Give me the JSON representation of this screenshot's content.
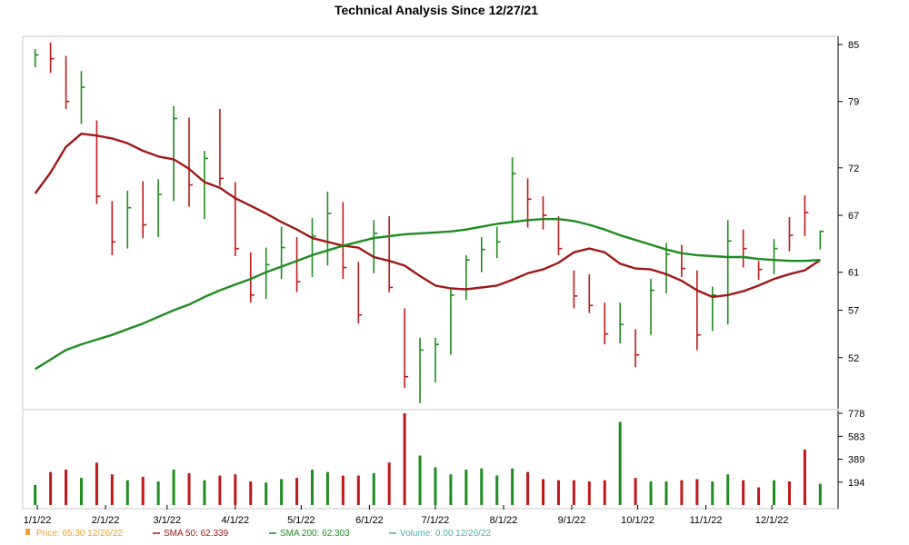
{
  "chart_data": {
    "type": "line",
    "title": "Technical Analysis Since 12/27/21",
    "price_axis": {
      "ticks": [
        52,
        57,
        61,
        67,
        72,
        79,
        85
      ],
      "ylim": [
        47,
        85
      ]
    },
    "volume_axis": {
      "ticks": [
        194,
        389,
        583,
        778
      ],
      "ylim": [
        0,
        778
      ]
    },
    "x_labels": [
      "1/1/22",
      "2/1/22",
      "3/1/22",
      "4/1/22",
      "5/1/22",
      "6/1/22",
      "7/1/22",
      "8/1/22",
      "9/1/22",
      "10/1/22",
      "11/1/22",
      "12/1/22"
    ],
    "series": [
      {
        "name": "SMA 50",
        "color": "#a01818",
        "x": [
          "2021-12-31",
          "2022-01-07",
          "2022-01-14",
          "2022-01-21",
          "2022-01-28",
          "2022-02-04",
          "2022-02-11",
          "2022-02-18",
          "2022-02-25",
          "2022-03-04",
          "2022-03-11",
          "2022-03-18",
          "2022-03-25",
          "2022-04-01",
          "2022-04-08",
          "2022-04-15",
          "2022-04-22",
          "2022-04-29",
          "2022-05-06",
          "2022-05-13",
          "2022-05-20",
          "2022-05-27",
          "2022-06-03",
          "2022-06-10",
          "2022-06-17",
          "2022-06-24",
          "2022-07-01",
          "2022-07-08",
          "2022-07-15",
          "2022-07-22",
          "2022-07-29",
          "2022-08-05",
          "2022-08-12",
          "2022-08-19",
          "2022-08-26",
          "2022-09-02",
          "2022-09-09",
          "2022-09-16",
          "2022-09-23",
          "2022-09-30",
          "2022-10-07",
          "2022-10-14",
          "2022-10-21",
          "2022-10-28",
          "2022-11-04",
          "2022-11-11",
          "2022-11-18",
          "2022-11-25",
          "2022-12-02",
          "2022-12-09",
          "2022-12-16",
          "2022-12-23"
        ],
        "values": [
          69.3,
          71.5,
          74.2,
          75.6,
          75.4,
          75.1,
          74.6,
          73.8,
          73.2,
          72.9,
          71.9,
          70.5,
          69.9,
          68.8,
          68.0,
          67.2,
          66.3,
          65.5,
          64.6,
          64.2,
          63.8,
          63.6,
          62.6,
          62.2,
          61.7,
          60.6,
          59.6,
          59.3,
          59.2,
          59.4,
          59.6,
          60.2,
          60.9,
          61.3,
          62.0,
          63.1,
          63.5,
          63.1,
          61.9,
          61.4,
          61.3,
          60.8,
          60.1,
          59.1,
          58.4,
          58.6,
          59.0,
          59.6,
          60.3,
          60.8,
          61.2,
          62.3
        ]
      },
      {
        "name": "SMA 200",
        "color": "#1e8c1e",
        "x": [
          "2021-12-31",
          "2022-01-07",
          "2022-01-14",
          "2022-01-21",
          "2022-01-28",
          "2022-02-04",
          "2022-02-11",
          "2022-02-18",
          "2022-02-25",
          "2022-03-04",
          "2022-03-11",
          "2022-03-18",
          "2022-03-25",
          "2022-04-01",
          "2022-04-08",
          "2022-04-15",
          "2022-04-22",
          "2022-04-29",
          "2022-05-06",
          "2022-05-13",
          "2022-05-20",
          "2022-05-27",
          "2022-06-03",
          "2022-06-10",
          "2022-06-17",
          "2022-06-24",
          "2022-07-01",
          "2022-07-08",
          "2022-07-15",
          "2022-07-22",
          "2022-07-29",
          "2022-08-05",
          "2022-08-12",
          "2022-08-19",
          "2022-08-26",
          "2022-09-02",
          "2022-09-09",
          "2022-09-16",
          "2022-09-23",
          "2022-09-30",
          "2022-10-07",
          "2022-10-14",
          "2022-10-21",
          "2022-10-28",
          "2022-11-04",
          "2022-11-11",
          "2022-11-18",
          "2022-11-25",
          "2022-12-02",
          "2022-12-09",
          "2022-12-16",
          "2022-12-23"
        ],
        "values": [
          50.8,
          51.8,
          52.8,
          53.4,
          53.9,
          54.4,
          55.0,
          55.6,
          56.3,
          57.0,
          57.6,
          58.4,
          59.1,
          59.7,
          60.3,
          61.0,
          61.6,
          62.2,
          62.8,
          63.3,
          63.8,
          64.2,
          64.6,
          64.8,
          65.0,
          65.1,
          65.2,
          65.3,
          65.5,
          65.8,
          66.1,
          66.3,
          66.5,
          66.6,
          66.6,
          66.4,
          66.0,
          65.5,
          64.9,
          64.4,
          63.9,
          63.4,
          63.0,
          62.8,
          62.7,
          62.6,
          62.6,
          62.4,
          62.3,
          62.2,
          62.2,
          62.3
        ]
      }
    ],
    "price_bars": [
      {
        "date": "2021-12-31",
        "high": 84.5,
        "low": 82.6,
        "close": 83.9,
        "dir": "up"
      },
      {
        "date": "2022-01-07",
        "high": 85.2,
        "low": 82.0,
        "close": 83.5,
        "dir": "down"
      },
      {
        "date": "2022-01-14",
        "high": 83.8,
        "low": 78.2,
        "close": 79.0,
        "dir": "down"
      },
      {
        "date": "2022-01-21",
        "high": 82.2,
        "low": 76.6,
        "close": 80.5,
        "dir": "up"
      },
      {
        "date": "2022-01-28",
        "high": 77.0,
        "low": 68.2,
        "close": 69.0,
        "dir": "down"
      },
      {
        "date": "2022-02-04",
        "high": 68.5,
        "low": 62.8,
        "close": 64.2,
        "dir": "down"
      },
      {
        "date": "2022-02-11",
        "high": 69.6,
        "low": 63.5,
        "close": 67.8,
        "dir": "up"
      },
      {
        "date": "2022-02-18",
        "high": 70.6,
        "low": 64.6,
        "close": 66.0,
        "dir": "down"
      },
      {
        "date": "2022-02-25",
        "high": 70.8,
        "low": 64.7,
        "close": 69.2,
        "dir": "up"
      },
      {
        "date": "2022-03-04",
        "high": 78.5,
        "low": 68.5,
        "close": 77.2,
        "dir": "up"
      },
      {
        "date": "2022-03-11",
        "high": 77.3,
        "low": 67.9,
        "close": 70.2,
        "dir": "down"
      },
      {
        "date": "2022-03-18",
        "high": 73.8,
        "low": 66.6,
        "close": 73.0,
        "dir": "up"
      },
      {
        "date": "2022-03-25",
        "high": 78.2,
        "low": 70.1,
        "close": 70.9,
        "dir": "down"
      },
      {
        "date": "2022-04-01",
        "high": 70.5,
        "low": 62.7,
        "close": 63.5,
        "dir": "down"
      },
      {
        "date": "2022-04-08",
        "high": 63.1,
        "low": 57.8,
        "close": 58.6,
        "dir": "down"
      },
      {
        "date": "2022-04-15",
        "high": 63.6,
        "low": 58.2,
        "close": 61.8,
        "dir": "up"
      },
      {
        "date": "2022-04-22",
        "high": 65.8,
        "low": 60.3,
        "close": 63.6,
        "dir": "up"
      },
      {
        "date": "2022-04-29",
        "high": 64.7,
        "low": 58.9,
        "close": 60.0,
        "dir": "down"
      },
      {
        "date": "2022-05-06",
        "high": 66.7,
        "low": 60.5,
        "close": 64.8,
        "dir": "up"
      },
      {
        "date": "2022-05-13",
        "high": 69.5,
        "low": 61.7,
        "close": 67.2,
        "dir": "up"
      },
      {
        "date": "2022-05-20",
        "high": 68.4,
        "low": 60.3,
        "close": 61.5,
        "dir": "down"
      },
      {
        "date": "2022-05-27",
        "high": 62.1,
        "low": 55.6,
        "close": 56.5,
        "dir": "down"
      },
      {
        "date": "2022-06-03",
        "high": 66.5,
        "low": 60.9,
        "close": 65.1,
        "dir": "up"
      },
      {
        "date": "2022-06-10",
        "high": 66.9,
        "low": 58.9,
        "close": 59.4,
        "dir": "down"
      },
      {
        "date": "2022-06-17",
        "high": 57.2,
        "low": 48.8,
        "close": 50.0,
        "dir": "down"
      },
      {
        "date": "2022-06-24",
        "high": 54.1,
        "low": 47.2,
        "close": 52.8,
        "dir": "up"
      },
      {
        "date": "2022-07-01",
        "high": 54.1,
        "low": 49.4,
        "close": 53.4,
        "dir": "up"
      },
      {
        "date": "2022-07-08",
        "high": 59.3,
        "low": 52.3,
        "close": 58.6,
        "dir": "up"
      },
      {
        "date": "2022-07-15",
        "high": 62.8,
        "low": 58.1,
        "close": 62.3,
        "dir": "up"
      },
      {
        "date": "2022-07-22",
        "high": 64.7,
        "low": 61.0,
        "close": 63.4,
        "dir": "up"
      },
      {
        "date": "2022-07-29",
        "high": 65.8,
        "low": 62.5,
        "close": 64.2,
        "dir": "up"
      },
      {
        "date": "2022-08-05",
        "high": 73.1,
        "low": 66.4,
        "close": 71.4,
        "dir": "up"
      },
      {
        "date": "2022-08-12",
        "high": 70.9,
        "low": 65.7,
        "close": 68.7,
        "dir": "down"
      },
      {
        "date": "2022-08-19",
        "high": 69.0,
        "low": 65.5,
        "close": 67.0,
        "dir": "down"
      },
      {
        "date": "2022-08-26",
        "high": 66.9,
        "low": 62.8,
        "close": 63.5,
        "dir": "down"
      },
      {
        "date": "2022-09-02",
        "high": 61.2,
        "low": 57.2,
        "close": 58.5,
        "dir": "down"
      },
      {
        "date": "2022-09-09",
        "high": 60.8,
        "low": 56.7,
        "close": 57.5,
        "dir": "down"
      },
      {
        "date": "2022-09-16",
        "high": 57.8,
        "low": 53.4,
        "close": 54.5,
        "dir": "down"
      },
      {
        "date": "2022-09-23",
        "high": 57.8,
        "low": 53.5,
        "close": 55.5,
        "dir": "up"
      },
      {
        "date": "2022-09-30",
        "high": 55.0,
        "low": 51.0,
        "close": 52.3,
        "dir": "down"
      },
      {
        "date": "2022-10-07",
        "high": 60.3,
        "low": 54.4,
        "close": 59.1,
        "dir": "up"
      },
      {
        "date": "2022-10-14",
        "high": 64.1,
        "low": 58.8,
        "close": 62.9,
        "dir": "up"
      },
      {
        "date": "2022-10-21",
        "high": 63.9,
        "low": 60.5,
        "close": 61.4,
        "dir": "down"
      },
      {
        "date": "2022-10-28",
        "high": 61.2,
        "low": 52.8,
        "close": 54.4,
        "dir": "down"
      },
      {
        "date": "2022-11-04",
        "high": 59.5,
        "low": 54.8,
        "close": 58.6,
        "dir": "up"
      },
      {
        "date": "2022-11-11",
        "high": 66.5,
        "low": 55.5,
        "close": 64.3,
        "dir": "up"
      },
      {
        "date": "2022-11-18",
        "high": 65.5,
        "low": 61.5,
        "close": 63.5,
        "dir": "down"
      },
      {
        "date": "2022-11-25",
        "high": 62.2,
        "low": 60.2,
        "close": 61.3,
        "dir": "down"
      },
      {
        "date": "2022-12-02",
        "high": 64.5,
        "low": 60.8,
        "close": 63.5,
        "dir": "up"
      },
      {
        "date": "2022-12-09",
        "high": 66.8,
        "low": 63.2,
        "close": 64.9,
        "dir": "down"
      },
      {
        "date": "2022-12-16",
        "high": 69.1,
        "low": 64.8,
        "close": 67.3,
        "dir": "down"
      },
      {
        "date": "2022-12-23",
        "high": 65.4,
        "low": 63.4,
        "close": 65.3,
        "dir": "up"
      }
    ],
    "volume_bars": [
      {
        "date": "2021-12-31",
        "value": 170,
        "dir": "up"
      },
      {
        "date": "2022-01-07",
        "value": 280,
        "dir": "down"
      },
      {
        "date": "2022-01-14",
        "value": 300,
        "dir": "down"
      },
      {
        "date": "2022-01-21",
        "value": 230,
        "dir": "up"
      },
      {
        "date": "2022-01-28",
        "value": 360,
        "dir": "down"
      },
      {
        "date": "2022-02-04",
        "value": 260,
        "dir": "down"
      },
      {
        "date": "2022-02-11",
        "value": 210,
        "dir": "up"
      },
      {
        "date": "2022-02-18",
        "value": 240,
        "dir": "down"
      },
      {
        "date": "2022-02-25",
        "value": 200,
        "dir": "up"
      },
      {
        "date": "2022-03-04",
        "value": 300,
        "dir": "up"
      },
      {
        "date": "2022-03-11",
        "value": 270,
        "dir": "down"
      },
      {
        "date": "2022-03-18",
        "value": 210,
        "dir": "up"
      },
      {
        "date": "2022-03-25",
        "value": 250,
        "dir": "down"
      },
      {
        "date": "2022-04-01",
        "value": 260,
        "dir": "down"
      },
      {
        "date": "2022-04-08",
        "value": 200,
        "dir": "down"
      },
      {
        "date": "2022-04-15",
        "value": 190,
        "dir": "up"
      },
      {
        "date": "2022-04-22",
        "value": 220,
        "dir": "up"
      },
      {
        "date": "2022-04-29",
        "value": 230,
        "dir": "down"
      },
      {
        "date": "2022-05-06",
        "value": 300,
        "dir": "up"
      },
      {
        "date": "2022-05-13",
        "value": 280,
        "dir": "up"
      },
      {
        "date": "2022-05-20",
        "value": 250,
        "dir": "down"
      },
      {
        "date": "2022-05-27",
        "value": 250,
        "dir": "down"
      },
      {
        "date": "2022-06-03",
        "value": 270,
        "dir": "up"
      },
      {
        "date": "2022-06-10",
        "value": 360,
        "dir": "down"
      },
      {
        "date": "2022-06-17",
        "value": 778,
        "dir": "down"
      },
      {
        "date": "2022-06-24",
        "value": 420,
        "dir": "up"
      },
      {
        "date": "2022-07-01",
        "value": 320,
        "dir": "up"
      },
      {
        "date": "2022-07-08",
        "value": 260,
        "dir": "up"
      },
      {
        "date": "2022-07-15",
        "value": 300,
        "dir": "up"
      },
      {
        "date": "2022-07-22",
        "value": 310,
        "dir": "up"
      },
      {
        "date": "2022-07-29",
        "value": 250,
        "dir": "up"
      },
      {
        "date": "2022-08-05",
        "value": 310,
        "dir": "up"
      },
      {
        "date": "2022-08-12",
        "value": 280,
        "dir": "down"
      },
      {
        "date": "2022-08-19",
        "value": 220,
        "dir": "down"
      },
      {
        "date": "2022-08-26",
        "value": 210,
        "dir": "down"
      },
      {
        "date": "2022-09-02",
        "value": 210,
        "dir": "down"
      },
      {
        "date": "2022-09-09",
        "value": 200,
        "dir": "down"
      },
      {
        "date": "2022-09-16",
        "value": 210,
        "dir": "down"
      },
      {
        "date": "2022-09-23",
        "value": 705,
        "dir": "up"
      },
      {
        "date": "2022-09-30",
        "value": 230,
        "dir": "down"
      },
      {
        "date": "2022-10-07",
        "value": 200,
        "dir": "up"
      },
      {
        "date": "2022-10-14",
        "value": 200,
        "dir": "up"
      },
      {
        "date": "2022-10-21",
        "value": 210,
        "dir": "down"
      },
      {
        "date": "2022-10-28",
        "value": 220,
        "dir": "down"
      },
      {
        "date": "2022-11-04",
        "value": 200,
        "dir": "up"
      },
      {
        "date": "2022-11-11",
        "value": 260,
        "dir": "up"
      },
      {
        "date": "2022-11-18",
        "value": 210,
        "dir": "down"
      },
      {
        "date": "2022-11-25",
        "value": 150,
        "dir": "down"
      },
      {
        "date": "2022-12-02",
        "value": 210,
        "dir": "up"
      },
      {
        "date": "2022-12-09",
        "value": 200,
        "dir": "down"
      },
      {
        "date": "2022-12-16",
        "value": 470,
        "dir": "down"
      },
      {
        "date": "2022-12-23",
        "value": 180,
        "dir": "up"
      }
    ],
    "grid": false,
    "legend": {
      "placement": "bottom-left",
      "items": [
        {
          "name": "Price",
          "label": "Price: 65.30 12/26/22",
          "color": "#f0a030"
        },
        {
          "name": "SMA 50",
          "label": "SMA 50: 62.339",
          "color": "#a01818"
        },
        {
          "name": "SMA 200",
          "label": "SMA 200: 62.303",
          "color": "#1e8c1e"
        },
        {
          "name": "Volume",
          "label": "Volume: 0.00 12/26/22",
          "color": "#4ab0b0"
        }
      ]
    },
    "colors": {
      "up": "#1e8c1e",
      "down": "#c01818",
      "axis": "#000000",
      "frame": "#c8c8c8"
    }
  }
}
